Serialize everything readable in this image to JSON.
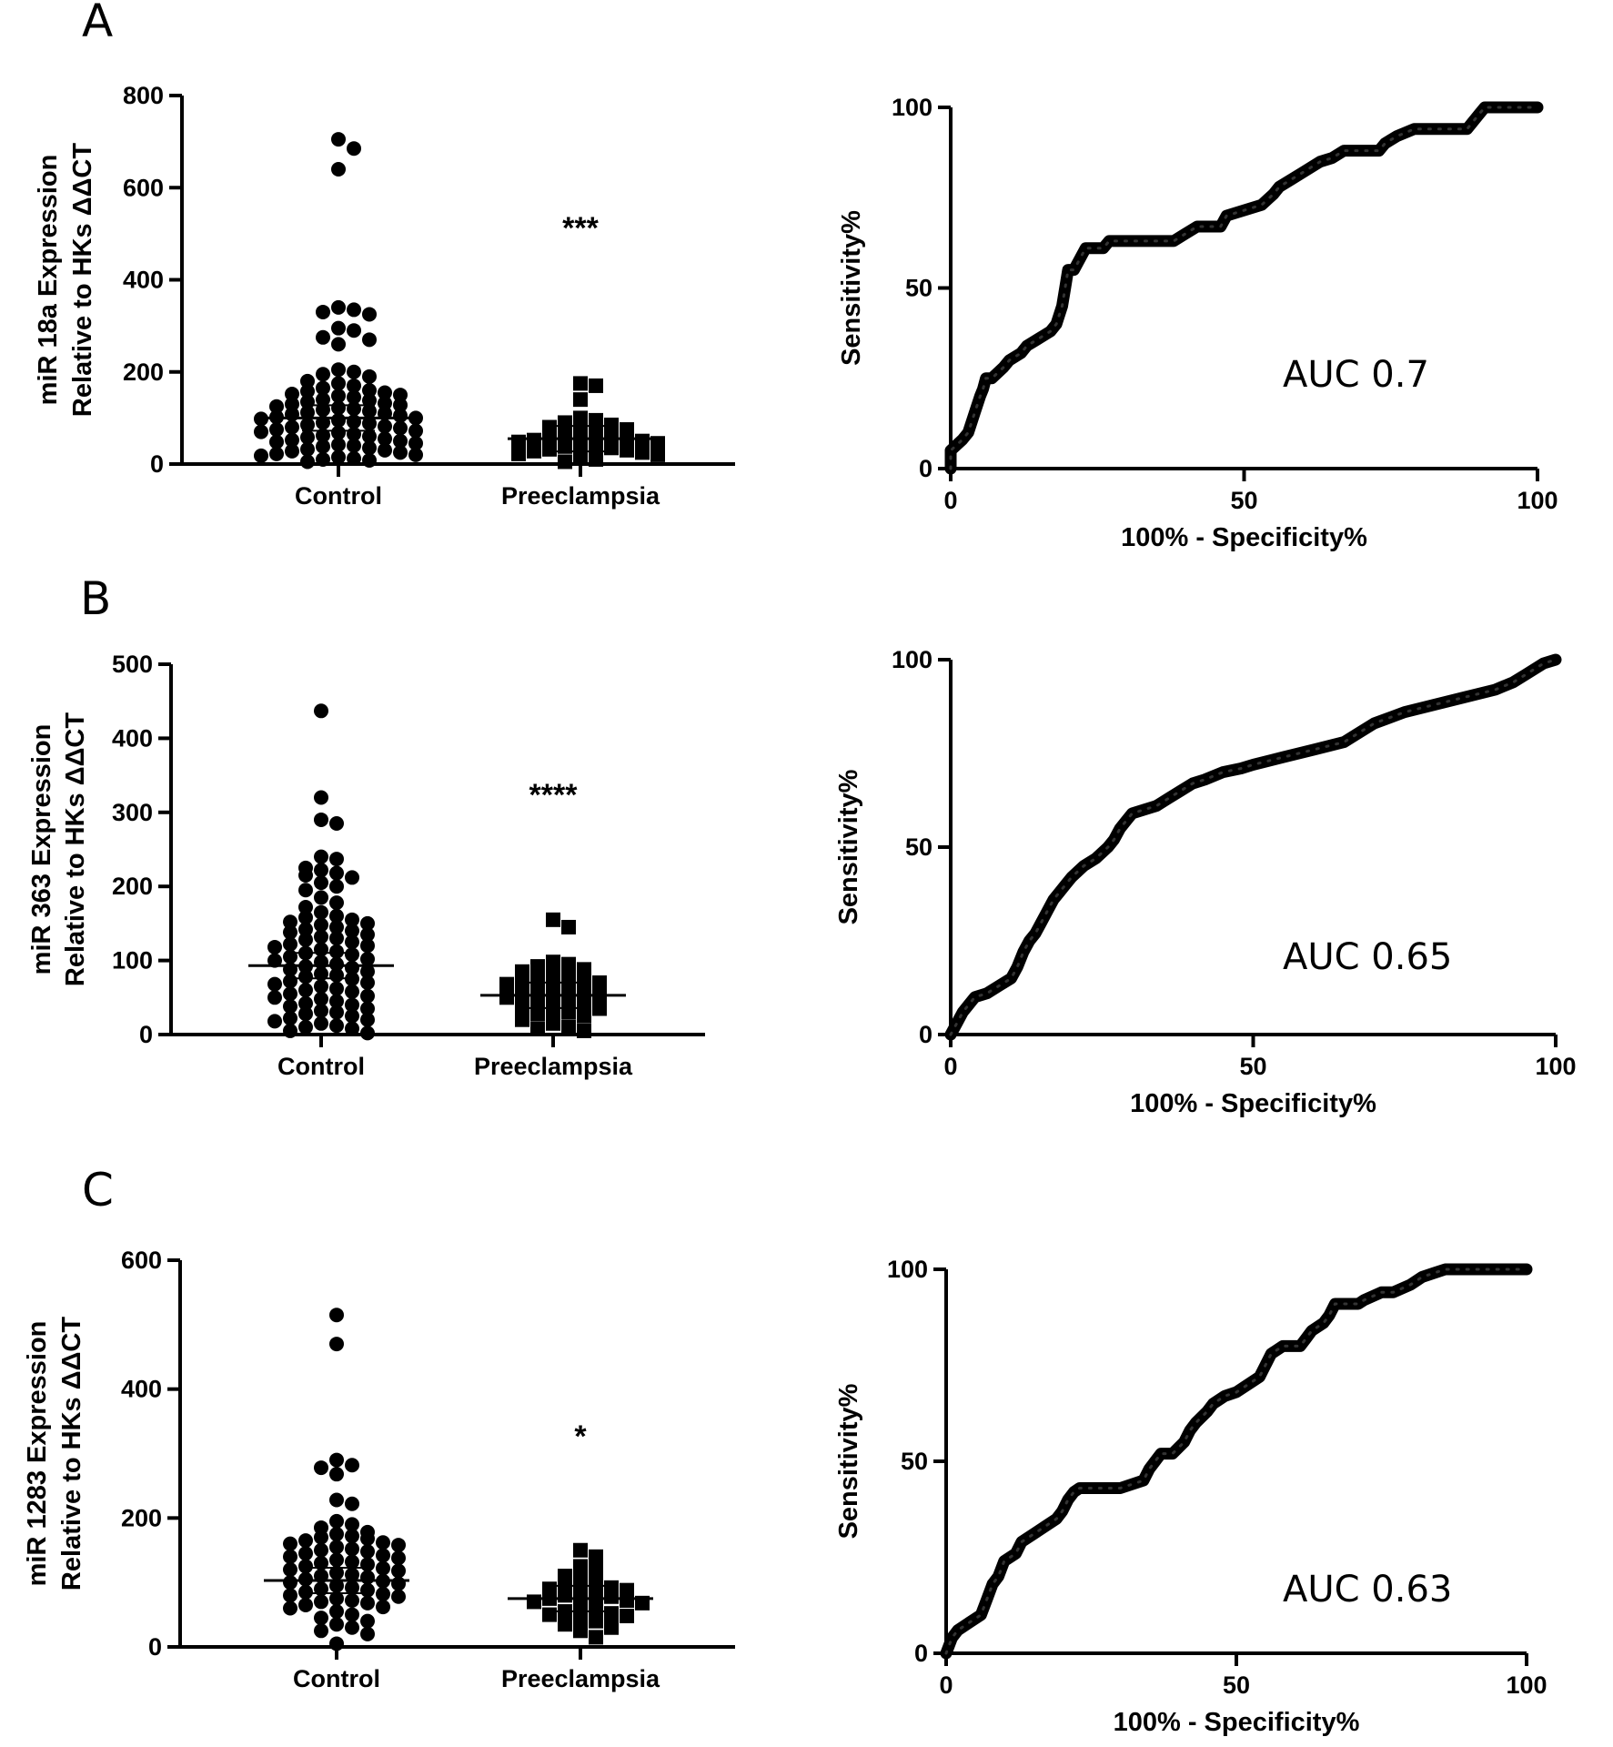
{
  "chart_data": [
    {
      "panel": "A",
      "type": "scatter",
      "subtype": "dot-plot",
      "categories": [
        "Control",
        "Preeclampsia"
      ],
      "ylabel_line1": "miR 18a Expression",
      "ylabel_line2": "Relative to HKs ΔΔCT",
      "ylim": [
        0,
        800
      ],
      "yticks": [
        0,
        200,
        400,
        600,
        800
      ],
      "significance": "***",
      "means": [
        100,
        55
      ],
      "series": [
        {
          "name": "Control",
          "values": [
            705,
            685,
            640,
            340,
            335,
            330,
            325,
            295,
            290,
            275,
            270,
            260,
            205,
            200,
            195,
            190,
            180,
            175,
            170,
            165,
            160,
            158,
            155,
            152,
            150,
            148,
            145,
            140,
            138,
            135,
            132,
            130,
            128,
            125,
            122,
            120,
            118,
            115,
            112,
            110,
            108,
            105,
            102,
            100,
            98,
            95,
            92,
            90,
            88,
            85,
            82,
            80,
            78,
            75,
            72,
            70,
            68,
            65,
            62,
            60,
            58,
            55,
            52,
            50,
            48,
            45,
            42,
            40,
            38,
            35,
            32,
            30,
            28,
            25,
            22,
            20,
            18,
            15,
            12,
            10,
            8,
            5
          ]
        },
        {
          "name": "Preeclampsia",
          "values": [
            175,
            170,
            140,
            100,
            95,
            90,
            85,
            80,
            75,
            70,
            65,
            62,
            60,
            58,
            55,
            52,
            50,
            48,
            45,
            42,
            40,
            38,
            35,
            32,
            30,
            28,
            25,
            22,
            20,
            15,
            10,
            5
          ]
        }
      ]
    },
    {
      "panel": "A",
      "type": "line",
      "subtype": "roc",
      "xlabel": "100% - Specificity%",
      "ylabel": "Sensitivity%",
      "xlim": [
        0,
        100
      ],
      "ylim": [
        0,
        100
      ],
      "ticks": [
        0,
        50,
        100
      ],
      "auc_label": "AUC 0.7",
      "x": [
        0,
        0,
        2,
        3,
        4,
        5,
        5.5,
        6,
        7,
        9,
        10,
        12,
        13,
        15,
        17,
        18,
        19,
        19.5,
        20,
        21,
        22,
        23,
        26,
        27,
        38,
        40,
        42,
        46,
        47,
        53,
        55,
        56,
        58,
        60,
        62,
        63,
        65,
        67,
        73,
        74,
        75,
        76,
        79,
        85,
        88,
        89,
        90,
        91,
        100
      ],
      "y": [
        0,
        5,
        8,
        10,
        15,
        20,
        22,
        25,
        25,
        28,
        30,
        32,
        34,
        36,
        38,
        40,
        45,
        50,
        55,
        55,
        58,
        61,
        61,
        63,
        63,
        65,
        67,
        67,
        70,
        73,
        76,
        78,
        80,
        82,
        84,
        85,
        86,
        88,
        88,
        90,
        91,
        92,
        94,
        94,
        94,
        96,
        98,
        100,
        100
      ]
    },
    {
      "panel": "B",
      "type": "scatter",
      "subtype": "dot-plot",
      "categories": [
        "Control",
        "Preeclampsia"
      ],
      "ylabel_line1": "miR 363 Expression",
      "ylabel_line2": "Relative to HKs ΔΔCT",
      "ylim": [
        0,
        500
      ],
      "yticks": [
        0,
        100,
        200,
        300,
        400,
        500
      ],
      "significance": "****",
      "means": [
        93,
        53
      ],
      "series": [
        {
          "name": "Control",
          "values": [
            437,
            320,
            290,
            285,
            240,
            237,
            225,
            222,
            218,
            215,
            212,
            205,
            200,
            195,
            185,
            178,
            172,
            165,
            160,
            158,
            155,
            152,
            150,
            148,
            145,
            142,
            140,
            138,
            135,
            132,
            130,
            128,
            125,
            122,
            120,
            118,
            115,
            112,
            110,
            108,
            105,
            102,
            100,
            98,
            95,
            92,
            90,
            88,
            85,
            82,
            80,
            78,
            75,
            72,
            70,
            68,
            65,
            62,
            60,
            58,
            55,
            52,
            50,
            48,
            45,
            42,
            40,
            38,
            35,
            32,
            30,
            28,
            25,
            22,
            20,
            18,
            15,
            12,
            10,
            8,
            5,
            2
          ]
        },
        {
          "name": "Preeclampsia",
          "values": [
            155,
            145,
            98,
            95,
            92,
            88,
            85,
            82,
            80,
            78,
            75,
            72,
            70,
            68,
            65,
            62,
            60,
            58,
            55,
            52,
            50,
            48,
            45,
            42,
            40,
            38,
            35,
            32,
            30,
            28,
            25,
            20,
            15,
            10,
            8,
            5
          ]
        }
      ]
    },
    {
      "panel": "B",
      "type": "line",
      "subtype": "roc",
      "xlabel": "100% - Specificity%",
      "ylabel": "Sensitivity%",
      "xlim": [
        0,
        100
      ],
      "ylim": [
        0,
        100
      ],
      "ticks": [
        0,
        50,
        100
      ],
      "auc_label": "AUC 0.65",
      "x": [
        0,
        1,
        2,
        3,
        4,
        6,
        8,
        10,
        11,
        12,
        13,
        14,
        15,
        16,
        17,
        18,
        19,
        20,
        22,
        24,
        26,
        27,
        28,
        29,
        30,
        32,
        34,
        36,
        38,
        40,
        42,
        45,
        48,
        50,
        55,
        60,
        65,
        67,
        70,
        75,
        80,
        85,
        90,
        93,
        95,
        97,
        98,
        100
      ],
      "y": [
        0,
        3,
        6,
        8,
        10,
        11,
        13,
        15,
        18,
        22,
        25,
        27,
        30,
        33,
        36,
        38,
        40,
        42,
        45,
        47,
        50,
        52,
        55,
        57,
        59,
        60,
        61,
        63,
        65,
        67,
        68,
        70,
        71,
        72,
        74,
        76,
        78,
        80,
        83,
        86,
        88,
        90,
        92,
        94,
        96,
        98,
        99,
        100
      ]
    },
    {
      "panel": "C",
      "type": "scatter",
      "subtype": "dot-plot",
      "categories": [
        "Control",
        "Preeclampsia"
      ],
      "ylabel_line1": "miR 1283 Expression",
      "ylabel_line2": "Relative to HKs ΔΔCT",
      "ylim": [
        0,
        600
      ],
      "yticks": [
        0,
        200,
        400,
        600
      ],
      "significance": "*",
      "means": [
        103,
        75
      ],
      "series": [
        {
          "name": "Control",
          "values": [
            515,
            470,
            290,
            282,
            278,
            268,
            228,
            222,
            195,
            190,
            185,
            178,
            175,
            172,
            170,
            168,
            165,
            162,
            160,
            158,
            155,
            152,
            150,
            148,
            145,
            142,
            140,
            138,
            135,
            132,
            130,
            128,
            125,
            122,
            120,
            118,
            115,
            112,
            110,
            108,
            105,
            102,
            100,
            98,
            95,
            92,
            90,
            88,
            85,
            82,
            80,
            78,
            75,
            72,
            70,
            68,
            65,
            62,
            60,
            55,
            50,
            45,
            40,
            35,
            30,
            25,
            20,
            5
          ]
        },
        {
          "name": "Preeclampsia",
          "values": [
            150,
            140,
            125,
            120,
            110,
            105,
            100,
            95,
            92,
            90,
            88,
            85,
            82,
            80,
            78,
            75,
            72,
            70,
            68,
            65,
            60,
            55,
            52,
            50,
            48,
            45,
            40,
            35,
            30,
            25,
            15
          ]
        }
      ]
    },
    {
      "panel": "C",
      "type": "line",
      "subtype": "roc",
      "xlabel": "100% - Specificity%",
      "ylabel": "Sensitivity%",
      "xlim": [
        0,
        100
      ],
      "ylim": [
        0,
        100
      ],
      "ticks": [
        0,
        50,
        100
      ],
      "auc_label": "AUC 0.63",
      "x": [
        0,
        1,
        2,
        4,
        6,
        7,
        8,
        9,
        10,
        12,
        13,
        15,
        17,
        19,
        20,
        21,
        22,
        23,
        28,
        30,
        34,
        35,
        36,
        37,
        39,
        41,
        42,
        43,
        45,
        46,
        48,
        50,
        52,
        54,
        55,
        56,
        58,
        61,
        62,
        63,
        65,
        66,
        67,
        71,
        72,
        75,
        77,
        80,
        82,
        84,
        86,
        100
      ],
      "y": [
        0,
        4,
        6,
        8,
        10,
        14,
        18,
        20,
        24,
        26,
        29,
        31,
        33,
        35,
        37,
        40,
        42,
        43,
        43,
        43,
        45,
        48,
        50,
        52,
        52,
        55,
        58,
        60,
        63,
        65,
        67,
        68,
        70,
        72,
        75,
        78,
        80,
        80,
        82,
        84,
        86,
        88,
        91,
        91,
        92,
        94,
        94,
        96,
        98,
        99,
        100,
        100
      ]
    }
  ]
}
